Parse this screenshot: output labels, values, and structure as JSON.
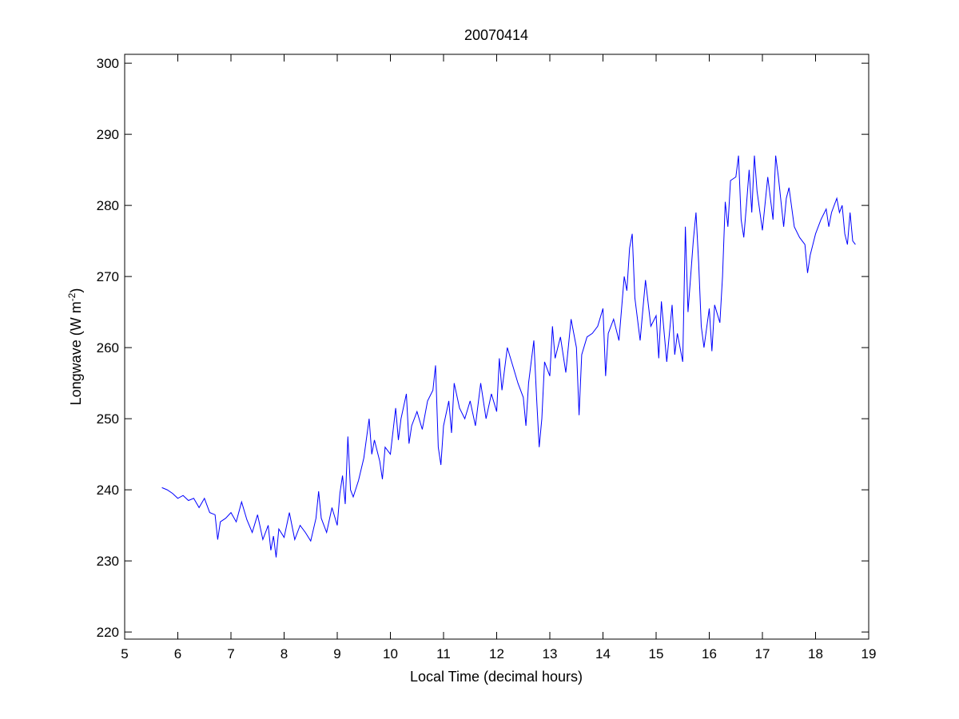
{
  "chart_data": {
    "type": "line",
    "title": "20070414",
    "xlabel": "Local Time (decimal hours)",
    "ylabel": {
      "main": "Longwave (W m",
      "sup": "-2",
      "close": ")"
    },
    "xlim": [
      5,
      19
    ],
    "ylim": [
      219,
      301.25
    ],
    "xticks": [
      5,
      6,
      7,
      8,
      9,
      10,
      11,
      12,
      13,
      14,
      15,
      16,
      17,
      18,
      19
    ],
    "yticks": [
      220,
      230,
      240,
      250,
      260,
      270,
      280,
      290,
      300
    ],
    "grid": false,
    "line_color": "#0000ff",
    "series": [
      {
        "name": "Longwave",
        "x": [
          5.7,
          5.8,
          5.9,
          6.0,
          6.1,
          6.2,
          6.3,
          6.4,
          6.5,
          6.6,
          6.7,
          6.75,
          6.8,
          6.9,
          7.0,
          7.1,
          7.2,
          7.3,
          7.4,
          7.5,
          7.6,
          7.7,
          7.75,
          7.8,
          7.85,
          7.9,
          8.0,
          8.1,
          8.2,
          8.3,
          8.4,
          8.5,
          8.6,
          8.65,
          8.7,
          8.8,
          8.9,
          9.0,
          9.05,
          9.1,
          9.15,
          9.2,
          9.25,
          9.3,
          9.4,
          9.5,
          9.6,
          9.65,
          9.7,
          9.8,
          9.85,
          9.9,
          10.0,
          10.1,
          10.15,
          10.2,
          10.3,
          10.35,
          10.4,
          10.5,
          10.6,
          10.7,
          10.8,
          10.85,
          10.9,
          10.95,
          11.0,
          11.1,
          11.15,
          11.2,
          11.3,
          11.4,
          11.5,
          11.6,
          11.7,
          11.8,
          11.9,
          12.0,
          12.05,
          12.1,
          12.2,
          12.3,
          12.4,
          12.5,
          12.55,
          12.6,
          12.7,
          12.75,
          12.8,
          12.85,
          12.9,
          13.0,
          13.05,
          13.1,
          13.2,
          13.3,
          13.4,
          13.5,
          13.55,
          13.6,
          13.7,
          13.8,
          13.9,
          14.0,
          14.05,
          14.1,
          14.2,
          14.3,
          14.4,
          14.45,
          14.5,
          14.55,
          14.6,
          14.7,
          14.8,
          14.9,
          15.0,
          15.05,
          15.1,
          15.2,
          15.3,
          15.35,
          15.4,
          15.5,
          15.55,
          15.6,
          15.7,
          15.75,
          15.8,
          15.85,
          15.9,
          16.0,
          16.05,
          16.1,
          16.2,
          16.25,
          16.3,
          16.35,
          16.4,
          16.5,
          16.55,
          16.6,
          16.65,
          16.7,
          16.75,
          16.8,
          16.85,
          16.9,
          17.0,
          17.1,
          17.2,
          17.25,
          17.3,
          17.4,
          17.45,
          17.5,
          17.6,
          17.7,
          17.8,
          17.85,
          17.9,
          18.0,
          18.1,
          18.2,
          18.25,
          18.3,
          18.4,
          18.45,
          18.5,
          18.55,
          18.6,
          18.65,
          18.7,
          18.75
        ],
        "y": [
          240.3,
          240,
          239.5,
          238.8,
          239.2,
          238.5,
          238.8,
          237.5,
          238.8,
          236.8,
          236.5,
          233,
          235.5,
          236,
          236.8,
          235.5,
          238.3,
          235.8,
          234,
          236.5,
          233,
          235,
          231.5,
          233.5,
          230.5,
          234.5,
          233.3,
          236.8,
          233,
          235,
          234,
          232.8,
          236,
          239.8,
          236,
          234,
          237.5,
          235,
          239.5,
          242,
          238,
          247.5,
          240,
          239,
          241.3,
          244.5,
          250,
          245,
          247,
          244,
          241.5,
          246,
          245,
          251.5,
          247,
          250,
          253.5,
          246.5,
          249,
          251,
          248.5,
          252.5,
          254,
          257.5,
          246,
          243.5,
          249,
          252.5,
          248,
          255,
          251.5,
          250,
          252.5,
          249,
          255,
          250,
          253.5,
          251,
          258.5,
          254,
          260,
          257.5,
          255,
          253,
          249,
          255,
          261,
          253,
          246,
          250,
          258,
          256,
          263,
          258.5,
          261.5,
          256.5,
          264,
          260,
          250.5,
          259,
          261.5,
          262,
          263,
          265.5,
          256,
          262,
          264,
          261,
          270,
          268,
          274,
          276,
          267,
          261,
          269.5,
          263,
          264.5,
          258.5,
          266.5,
          258,
          266,
          259,
          262,
          258,
          277,
          265,
          275,
          279,
          272,
          263,
          260,
          265.5,
          259.5,
          266,
          263.5,
          270,
          280.5,
          277,
          283.5,
          284,
          287,
          278,
          275.5,
          280,
          285,
          279,
          287,
          282,
          276.5,
          284,
          278,
          287,
          284,
          277,
          281,
          282.5,
          277,
          275.5,
          274.5,
          270.5,
          273,
          276,
          278,
          279.5,
          277,
          279,
          281,
          279,
          280,
          276,
          274.5,
          279,
          275,
          274.5
        ]
      }
    ]
  }
}
